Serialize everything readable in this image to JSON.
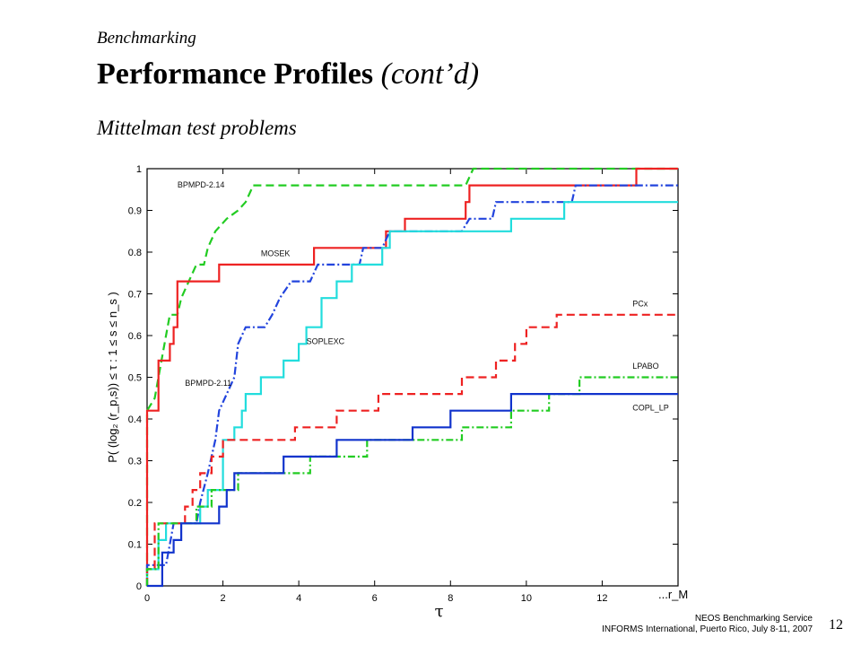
{
  "slide": {
    "kicker": "Benchmarking",
    "title": "Performance Profiles",
    "title_suffix": "(cont’d)",
    "subtitle": "Mittelman test problems",
    "footer_line1": "NEOS Benchmarking Service",
    "footer_line2": "INFORMS International, Puerto Rico, July 8-11, 2007",
    "page_number": "12"
  },
  "chart_data": {
    "type": "line",
    "xlabel": "τ",
    "ylabel": "P( (log₂ (r_p,s)) ≤ τ : 1 ≤ s ≤ n_s )",
    "xlim": [
      0,
      14
    ],
    "ylim": [
      0,
      1
    ],
    "x_ticks": [
      0,
      2,
      4,
      6,
      8,
      10,
      12
    ],
    "x_tick_extra": "...r_M",
    "y_ticks": [
      0,
      0.1,
      0.2,
      0.3,
      0.4,
      0.5,
      0.6,
      0.7,
      0.8,
      0.9,
      1
    ],
    "grid": false,
    "series": [
      {
        "name": "BPMPD-2.14",
        "color": "#22cc22",
        "dash": "9,5",
        "label_at": [
          0.8,
          0.955
        ],
        "points": [
          [
            0,
            0
          ],
          [
            0,
            0.42
          ],
          [
            0.2,
            0.45
          ],
          [
            0.3,
            0.5
          ],
          [
            0.4,
            0.55
          ],
          [
            0.5,
            0.6
          ],
          [
            0.6,
            0.65
          ],
          [
            0.8,
            0.65
          ],
          [
            0.9,
            0.69
          ],
          [
            1.1,
            0.73
          ],
          [
            1.3,
            0.77
          ],
          [
            1.5,
            0.77
          ],
          [
            1.6,
            0.81
          ],
          [
            1.8,
            0.85
          ],
          [
            2.1,
            0.88
          ],
          [
            2.4,
            0.9
          ],
          [
            2.6,
            0.92
          ],
          [
            2.8,
            0.96
          ],
          [
            8.4,
            0.96
          ],
          [
            8.6,
            1
          ],
          [
            14,
            1
          ]
        ]
      },
      {
        "name": "MOSEK",
        "color": "#ee2222",
        "dash": "",
        "label_at": [
          3.0,
          0.79
        ],
        "points": [
          [
            0,
            0
          ],
          [
            0,
            0.42
          ],
          [
            0.3,
            0.42
          ],
          [
            0.3,
            0.54
          ],
          [
            0.6,
            0.54
          ],
          [
            0.6,
            0.58
          ],
          [
            0.7,
            0.58
          ],
          [
            0.7,
            0.62
          ],
          [
            0.8,
            0.62
          ],
          [
            0.8,
            0.73
          ],
          [
            1.9,
            0.73
          ],
          [
            1.9,
            0.77
          ],
          [
            4.4,
            0.77
          ],
          [
            4.4,
            0.81
          ],
          [
            6.3,
            0.81
          ],
          [
            6.3,
            0.85
          ],
          [
            6.8,
            0.85
          ],
          [
            6.8,
            0.88
          ],
          [
            8.4,
            0.88
          ],
          [
            8.4,
            0.92
          ],
          [
            8.5,
            0.92
          ],
          [
            8.5,
            0.96
          ],
          [
            12.9,
            0.96
          ],
          [
            12.9,
            1
          ],
          [
            14,
            1
          ]
        ]
      },
      {
        "name": "BPMPD-2.11",
        "color": "#2244dd",
        "dash": "9,3,2,3",
        "label_at": [
          1.0,
          0.48
        ],
        "points": [
          [
            0,
            0
          ],
          [
            0,
            0.05
          ],
          [
            0.5,
            0.05
          ],
          [
            0.6,
            0.1
          ],
          [
            0.7,
            0.15
          ],
          [
            1.3,
            0.15
          ],
          [
            1.4,
            0.2
          ],
          [
            1.6,
            0.27
          ],
          [
            1.8,
            0.35
          ],
          [
            1.9,
            0.42
          ],
          [
            2.1,
            0.46
          ],
          [
            2.3,
            0.5
          ],
          [
            2.4,
            0.58
          ],
          [
            2.6,
            0.62
          ],
          [
            3.1,
            0.62
          ],
          [
            3.3,
            0.65
          ],
          [
            3.5,
            0.69
          ],
          [
            3.8,
            0.73
          ],
          [
            4.3,
            0.73
          ],
          [
            4.5,
            0.77
          ],
          [
            5.6,
            0.77
          ],
          [
            5.7,
            0.81
          ],
          [
            6.2,
            0.81
          ],
          [
            6.4,
            0.85
          ],
          [
            8.3,
            0.85
          ],
          [
            8.5,
            0.88
          ],
          [
            9.1,
            0.88
          ],
          [
            9.2,
            0.92
          ],
          [
            11.2,
            0.92
          ],
          [
            11.3,
            0.96
          ],
          [
            14,
            0.96
          ]
        ]
      },
      {
        "name": "SOPLEXC",
        "color": "#22dddd",
        "dash": "",
        "label_at": [
          4.2,
          0.58
        ],
        "points": [
          [
            0,
            0
          ],
          [
            0,
            0.04
          ],
          [
            0.3,
            0.04
          ],
          [
            0.3,
            0.11
          ],
          [
            0.5,
            0.11
          ],
          [
            0.5,
            0.15
          ],
          [
            1.4,
            0.15
          ],
          [
            1.4,
            0.19
          ],
          [
            1.6,
            0.19
          ],
          [
            1.6,
            0.23
          ],
          [
            2,
            0.23
          ],
          [
            2,
            0.35
          ],
          [
            2.3,
            0.35
          ],
          [
            2.3,
            0.38
          ],
          [
            2.5,
            0.38
          ],
          [
            2.5,
            0.42
          ],
          [
            2.6,
            0.42
          ],
          [
            2.6,
            0.46
          ],
          [
            3.0,
            0.46
          ],
          [
            3.0,
            0.5
          ],
          [
            3.6,
            0.5
          ],
          [
            3.6,
            0.54
          ],
          [
            4.0,
            0.54
          ],
          [
            4.0,
            0.58
          ],
          [
            4.2,
            0.58
          ],
          [
            4.2,
            0.62
          ],
          [
            4.6,
            0.62
          ],
          [
            4.6,
            0.69
          ],
          [
            5.0,
            0.69
          ],
          [
            5.0,
            0.73
          ],
          [
            5.4,
            0.73
          ],
          [
            5.4,
            0.77
          ],
          [
            6.2,
            0.77
          ],
          [
            6.2,
            0.81
          ],
          [
            6.4,
            0.81
          ],
          [
            6.4,
            0.85
          ],
          [
            9.6,
            0.85
          ],
          [
            9.6,
            0.88
          ],
          [
            11,
            0.88
          ],
          [
            11,
            0.92
          ],
          [
            14,
            0.92
          ]
        ]
      },
      {
        "name": "PCx",
        "color": "#ee2222",
        "dash": "9,5",
        "label_at": [
          12.8,
          0.67
        ],
        "points": [
          [
            0,
            0
          ],
          [
            0,
            0.04
          ],
          [
            0.2,
            0.04
          ],
          [
            0.2,
            0.15
          ],
          [
            1.0,
            0.15
          ],
          [
            1.0,
            0.19
          ],
          [
            1.2,
            0.19
          ],
          [
            1.2,
            0.23
          ],
          [
            1.4,
            0.23
          ],
          [
            1.4,
            0.27
          ],
          [
            1.7,
            0.27
          ],
          [
            1.7,
            0.31
          ],
          [
            2.0,
            0.31
          ],
          [
            2.0,
            0.35
          ],
          [
            3.9,
            0.35
          ],
          [
            3.9,
            0.38
          ],
          [
            5.0,
            0.38
          ],
          [
            5.0,
            0.42
          ],
          [
            6.1,
            0.42
          ],
          [
            6.1,
            0.46
          ],
          [
            8.3,
            0.46
          ],
          [
            8.3,
            0.5
          ],
          [
            9.2,
            0.5
          ],
          [
            9.2,
            0.54
          ],
          [
            9.7,
            0.54
          ],
          [
            9.7,
            0.58
          ],
          [
            10.0,
            0.58
          ],
          [
            10.0,
            0.62
          ],
          [
            10.8,
            0.62
          ],
          [
            10.8,
            0.65
          ],
          [
            14,
            0.65
          ]
        ]
      },
      {
        "name": "LPABO",
        "color": "#22cc22",
        "dash": "8,3,2,3",
        "label_at": [
          12.8,
          0.52
        ],
        "points": [
          [
            0,
            0
          ],
          [
            0,
            0.04
          ],
          [
            0.3,
            0.04
          ],
          [
            0.3,
            0.15
          ],
          [
            1.3,
            0.15
          ],
          [
            1.3,
            0.19
          ],
          [
            1.7,
            0.19
          ],
          [
            1.7,
            0.23
          ],
          [
            2.4,
            0.23
          ],
          [
            2.4,
            0.27
          ],
          [
            3.6,
            0.27
          ],
          [
            3.6,
            0.27
          ],
          [
            4.3,
            0.27
          ],
          [
            4.3,
            0.31
          ],
          [
            5.8,
            0.31
          ],
          [
            5.8,
            0.35
          ],
          [
            8.3,
            0.35
          ],
          [
            8.3,
            0.38
          ],
          [
            9.6,
            0.38
          ],
          [
            9.6,
            0.42
          ],
          [
            10.6,
            0.42
          ],
          [
            10.6,
            0.46
          ],
          [
            11.4,
            0.46
          ],
          [
            11.4,
            0.5
          ],
          [
            14,
            0.5
          ]
        ]
      },
      {
        "name": "COPL_LP",
        "color": "#1133cc",
        "dash": "",
        "label_at": [
          12.8,
          0.42
        ],
        "points": [
          [
            0,
            0
          ],
          [
            0,
            0.0
          ],
          [
            0.4,
            0.0
          ],
          [
            0.4,
            0.08
          ],
          [
            0.7,
            0.08
          ],
          [
            0.7,
            0.11
          ],
          [
            0.9,
            0.11
          ],
          [
            0.9,
            0.15
          ],
          [
            1.9,
            0.15
          ],
          [
            1.9,
            0.19
          ],
          [
            2.1,
            0.19
          ],
          [
            2.1,
            0.23
          ],
          [
            2.3,
            0.23
          ],
          [
            2.3,
            0.27
          ],
          [
            3.6,
            0.27
          ],
          [
            3.6,
            0.31
          ],
          [
            5.0,
            0.31
          ],
          [
            5.0,
            0.35
          ],
          [
            7.0,
            0.35
          ],
          [
            7.0,
            0.38
          ],
          [
            8.0,
            0.38
          ],
          [
            8.0,
            0.42
          ],
          [
            9.6,
            0.42
          ],
          [
            9.6,
            0.46
          ],
          [
            14,
            0.46
          ]
        ]
      }
    ]
  }
}
